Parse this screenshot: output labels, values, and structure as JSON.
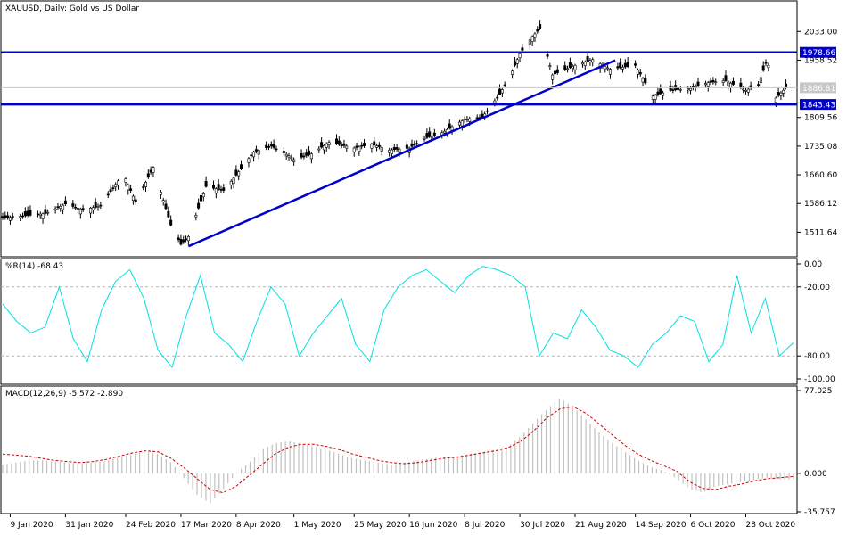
{
  "chart_data": [
    {
      "type": "candlestick",
      "title": "XAUUSD, Daily:  Gold vs US Dollar",
      "ylim": [
        1450,
        2110
      ],
      "y_ticks": [
        "2033.00",
        "1958.52",
        "1886.81",
        "1809.56",
        "1735.08",
        "1660.60",
        "1586.12",
        "1511.64"
      ],
      "y_tick_values": [
        2033.0,
        1958.52,
        1886.81,
        1809.56,
        1735.08,
        1660.6,
        1586.12,
        1511.64
      ],
      "x_ticks": [
        "9 Jan 2020",
        "31 Jan 2020",
        "24 Feb 2020",
        "17 Mar 2020",
        "8 Apr 2020",
        "1 May 2020",
        "25 May 2020",
        "16 Jun 2020",
        "8 Jul 2020",
        "30 Jul 2020",
        "21 Aug 2020",
        "14 Sep 2020",
        "6 Oct 2020",
        "28 Oct 2020"
      ],
      "x": [
        "2020-01-09",
        "2020-01-16",
        "2020-01-23",
        "2020-01-31",
        "2020-02-07",
        "2020-02-14",
        "2020-02-21",
        "2020-02-24",
        "2020-02-28",
        "2020-03-06",
        "2020-03-13",
        "2020-03-17",
        "2020-03-20",
        "2020-03-27",
        "2020-04-03",
        "2020-04-08",
        "2020-04-15",
        "2020-04-22",
        "2020-04-29",
        "2020-05-01",
        "2020-05-08",
        "2020-05-15",
        "2020-05-22",
        "2020-05-25",
        "2020-06-01",
        "2020-06-08",
        "2020-06-16",
        "2020-06-22",
        "2020-06-29",
        "2020-07-08",
        "2020-07-15",
        "2020-07-22",
        "2020-07-27",
        "2020-07-30",
        "2020-08-04",
        "2020-08-07",
        "2020-08-12",
        "2020-08-21",
        "2020-08-28",
        "2020-09-04",
        "2020-09-14",
        "2020-09-21",
        "2020-09-28",
        "2020-10-06",
        "2020-10-13",
        "2020-10-20",
        "2020-10-28",
        "2020-11-02",
        "2020-11-05",
        "2020-11-06",
        "2020-11-09",
        "2020-11-13"
      ],
      "close": [
        1550,
        1555,
        1560,
        1585,
        1570,
        1580,
        1645,
        1650,
        1590,
        1680,
        1530,
        1480,
        1500,
        1630,
        1620,
        1660,
        1720,
        1735,
        1710,
        1700,
        1715,
        1745,
        1735,
        1730,
        1740,
        1725,
        1730,
        1755,
        1770,
        1805,
        1810,
        1870,
        1930,
        1975,
        2020,
        2040,
        1920,
        1945,
        1960,
        1935,
        1945,
        1865,
        1880,
        1885,
        1900,
        1905,
        1880,
        1895,
        1950,
        1945,
        1860,
        1886.81
      ],
      "current_price_label": "1886.81",
      "levels": [
        {
          "value": 1978.66,
          "label": "1978.66",
          "color": "#0000cc"
        },
        {
          "value": 1843.43,
          "label": "1843.43",
          "color": "#0000cc"
        }
      ],
      "trendline": {
        "from": [
          "2020-03-20",
          1475
        ],
        "to": [
          "2020-09-06",
          1958
        ],
        "color": "#0000cc"
      }
    },
    {
      "type": "line",
      "title": "%R(14) -68.43",
      "ylim": [
        -100,
        0
      ],
      "y_ticks": [
        "0.00",
        "-20.00",
        "-80.00",
        "-100.00"
      ],
      "y_tick_values": [
        0,
        -20,
        -80,
        -100
      ],
      "levels": [
        -20,
        -80
      ],
      "series": [
        {
          "color": "#00e0e0",
          "values": [
            -35,
            -50,
            -60,
            -55,
            -20,
            -65,
            -85,
            -40,
            -15,
            -5,
            -30,
            -75,
            -90,
            -45,
            -10,
            -60,
            -70,
            -85,
            -50,
            -20,
            -35,
            -80,
            -60,
            -45,
            -30,
            -70,
            -85,
            -40,
            -20,
            -10,
            -5,
            -15,
            -25,
            -10,
            -2,
            -5,
            -10,
            -20,
            -80,
            -60,
            -65,
            -40,
            -55,
            -75,
            -80,
            -90,
            -70,
            -60,
            -45,
            -50,
            -85,
            -70,
            -10,
            -60,
            -30,
            -80,
            -68.43
          ]
        }
      ]
    },
    {
      "type": "bar+line",
      "title": "MACD(12,26,9) -5.572 -2.890",
      "ylim": [
        -35.757,
        77.025
      ],
      "y_ticks": [
        "77.025",
        "0.000",
        "-35.757"
      ],
      "y_tick_values": [
        77.025,
        0.0,
        -35.757
      ],
      "series": [
        {
          "name": "MACD",
          "color": "#c0c0c0",
          "values": [
            8,
            10,
            12,
            12,
            11,
            10,
            9,
            10,
            12,
            15,
            18,
            20,
            18,
            10,
            -5,
            -20,
            -28,
            -15,
            0,
            10,
            22,
            28,
            30,
            28,
            25,
            22,
            18,
            14,
            12,
            10,
            8,
            10,
            12,
            14,
            15,
            16,
            18,
            20,
            22,
            25,
            35,
            48,
            60,
            70,
            62,
            50,
            38,
            28,
            20,
            12,
            6,
            2,
            -5,
            -15,
            -18,
            -12,
            -10,
            -8,
            -6,
            -4,
            -6,
            -5.572
          ]
        },
        {
          "name": "Signal",
          "color": "#cc0000",
          "values": [
            18,
            17,
            16,
            14,
            12,
            11,
            10,
            11,
            13,
            16,
            19,
            21,
            20,
            14,
            5,
            -5,
            -15,
            -18,
            -12,
            -2,
            8,
            18,
            24,
            27,
            27,
            25,
            22,
            18,
            15,
            12,
            10,
            9,
            10,
            12,
            14,
            15,
            17,
            19,
            21,
            24,
            30,
            40,
            52,
            60,
            62,
            56,
            46,
            36,
            26,
            18,
            12,
            7,
            2,
            -8,
            -14,
            -15,
            -12,
            -10,
            -7,
            -5,
            -4,
            -2.89
          ]
        }
      ]
    }
  ],
  "colors": {
    "bull": "#ffffff",
    "bear": "#000000",
    "levels": "#0000cc",
    "wpr": "#00e0e0",
    "macd_bars": "#c0c0c0",
    "signal": "#cc0000",
    "grid": "#c8c8c8",
    "border": "#000000"
  }
}
